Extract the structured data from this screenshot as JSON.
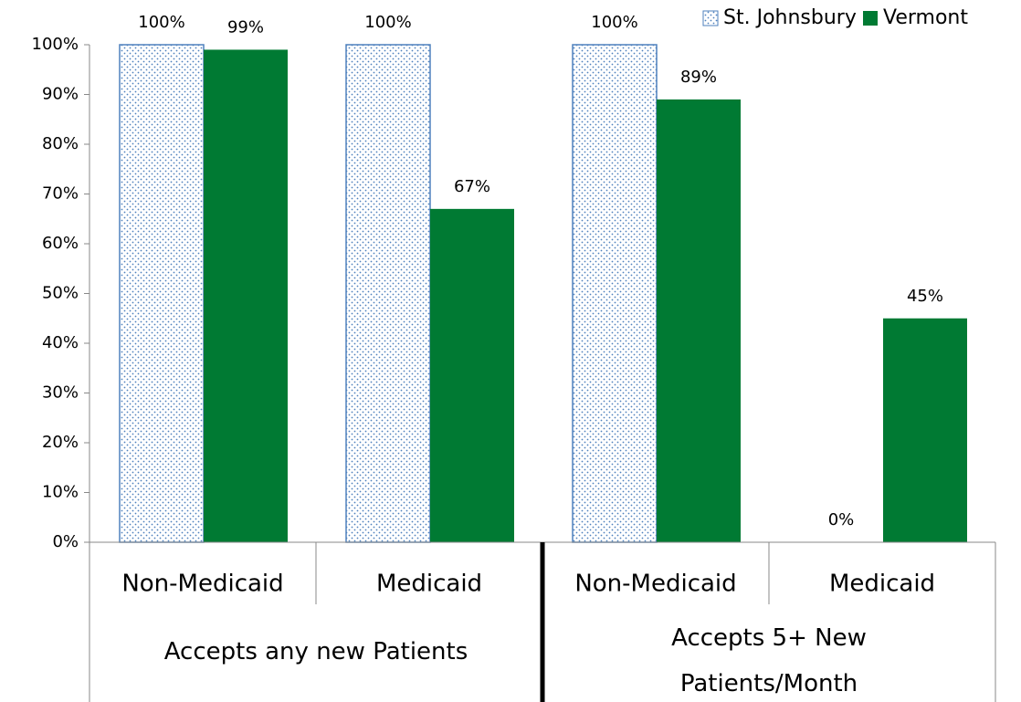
{
  "chart_data": {
    "type": "bar",
    "categories": [
      "Non-Medicaid",
      "Medicaid",
      "Non-Medicaid",
      "Medicaid"
    ],
    "groups": [
      "Accepts any new Patients",
      "Accepts 5+ New Patients/Month"
    ],
    "series": [
      {
        "name": "St. Johnsbury",
        "color": "#4f81bd",
        "pattern": "dots",
        "values": [
          100,
          100,
          100,
          0
        ],
        "value_labels": [
          "100%",
          "100%",
          "100%",
          "0%"
        ]
      },
      {
        "name": "Vermont",
        "color": "#007a33",
        "values": [
          99,
          67,
          89,
          45
        ],
        "value_labels": [
          "99%",
          "67%",
          "89%",
          "45%"
        ]
      }
    ],
    "ylim": [
      0,
      100
    ],
    "yticks": [
      {
        "value": 0,
        "label": "0%"
      },
      {
        "value": 10,
        "label": "10%"
      },
      {
        "value": 20,
        "label": "20%"
      },
      {
        "value": 30,
        "label": "30%"
      },
      {
        "value": 40,
        "label": "40%"
      },
      {
        "value": 50,
        "label": "50%"
      },
      {
        "value": 60,
        "label": "60%"
      },
      {
        "value": 70,
        "label": "70%"
      },
      {
        "value": 80,
        "label": "80%"
      },
      {
        "value": 90,
        "label": "90%"
      },
      {
        "value": 100,
        "label": "100%"
      }
    ],
    "legend": "top-right"
  }
}
